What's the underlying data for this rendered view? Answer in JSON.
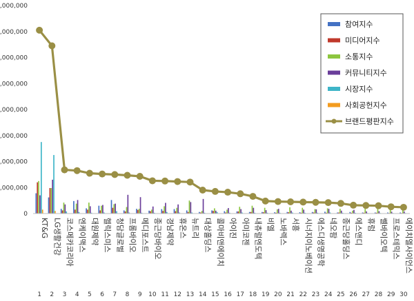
{
  "chart_data": {
    "type": "bar",
    "title": "",
    "xlabel": "",
    "ylabel": "",
    "ylim": [
      0,
      8000000
    ],
    "yticks": [
      "0",
      "1,000,000",
      "2,000,000",
      "3,000,000",
      "4,000,000",
      "5,000,000",
      "6,000,000",
      "7,000,000",
      "8,000,000"
    ],
    "grid": false,
    "legend_position": "top-right",
    "ranks": [
      "1",
      "2",
      "3",
      "4",
      "5",
      "6",
      "7",
      "8",
      "9",
      "10",
      "11",
      "12",
      "13",
      "14",
      "15",
      "16",
      "17",
      "18",
      "19",
      "20",
      "21",
      "22",
      "23",
      "24",
      "25",
      "26",
      "27",
      "28",
      "29",
      "30"
    ],
    "categories": [
      "KT&G",
      "LG생활건강",
      "코스메카코리아",
      "엔케이맥스",
      "대원제약",
      "헬릭스미스",
      "청담글로벌",
      "프롬바이오",
      "메디포스트",
      "종근당바이오",
      "경남제약",
      "휴온스",
      "뉴트리",
      "대상홀딩스",
      "콜마비앤에이치",
      "아이진",
      "아미코젠",
      "내츄럴엔도텍",
      "비엘",
      "노바렉스",
      "서흥",
      "시너지이노베이션",
      "에스디생명공학",
      "네오팜",
      "종근당홀딩스",
      "에스앤디",
      "휴럼",
      "쎌바이오텍",
      "프로스테믹스",
      "에이치엘사이언스"
    ],
    "series": [
      {
        "name": "참여지수",
        "color": "#4472C4",
        "values": [
          780000,
          620000,
          180000,
          480000,
          200000,
          300000,
          520000,
          120000,
          180000,
          110000,
          170000,
          170000,
          120000,
          60000,
          120000,
          90000,
          80000,
          60000,
          60000,
          50000,
          60000,
          50000,
          60000,
          70000,
          40000,
          60000,
          40000,
          40000,
          40000,
          40000
        ]
      },
      {
        "name": "미디어지수",
        "color": "#C0392B",
        "values": [
          1200000,
          980000,
          120000,
          150000,
          150000,
          120000,
          220000,
          80000,
          140000,
          90000,
          100000,
          90000,
          60000,
          40000,
          100000,
          40000,
          80000,
          60000,
          50000,
          30000,
          50000,
          30000,
          40000,
          30000,
          40000,
          30000,
          30000,
          30000,
          20000,
          20000
        ]
      },
      {
        "name": "소통지수",
        "color": "#8DC63F",
        "values": [
          1250000,
          980000,
          420000,
          380000,
          420000,
          300000,
          360000,
          250000,
          180000,
          150000,
          280000,
          220000,
          500000,
          100000,
          200000,
          150000,
          260000,
          300000,
          220000,
          160000,
          240000,
          220000,
          170000,
          200000,
          180000,
          110000,
          180000,
          180000,
          160000,
          130000
        ]
      },
      {
        "name": "커뮤니티지수",
        "color": "#6A3D9A",
        "values": [
          700000,
          1300000,
          350000,
          520000,
          280000,
          330000,
          380000,
          720000,
          630000,
          270000,
          410000,
          350000,
          440000,
          560000,
          110000,
          210000,
          170000,
          220000,
          130000,
          180000,
          110000,
          150000,
          160000,
          180000,
          110000,
          140000,
          80000,
          90000,
          70000,
          80000
        ]
      },
      {
        "name": "시장지수",
        "color": "#3EB5C8",
        "values": [
          2750000,
          2250000,
          80000,
          60000,
          30000,
          40000,
          90000,
          40000,
          30000,
          30000,
          60000,
          40000,
          40000,
          30000,
          60000,
          30000,
          40000,
          30000,
          30000,
          30000,
          40000,
          30000,
          30000,
          40000,
          30000,
          30000,
          20000,
          20000,
          20000,
          20000
        ]
      },
      {
        "name": "사회공헌지수",
        "color": "#F39C1F",
        "values": [
          150000,
          100000,
          10000,
          10000,
          10000,
          10000,
          10000,
          10000,
          10000,
          10000,
          10000,
          10000,
          10000,
          10000,
          10000,
          10000,
          10000,
          10000,
          10000,
          10000,
          10000,
          10000,
          10000,
          10000,
          10000,
          10000,
          10000,
          10000,
          10000,
          10000
        ]
      },
      {
        "name": "브랜드평판지수",
        "color": "#9A8F45",
        "type": "line",
        "values": [
          7050000,
          6450000,
          1680000,
          1650000,
          1550000,
          1520000,
          1500000,
          1470000,
          1430000,
          1260000,
          1250000,
          1230000,
          1210000,
          900000,
          850000,
          820000,
          760000,
          660000,
          480000,
          460000,
          450000,
          440000,
          430000,
          420000,
          390000,
          320000,
          310000,
          300000,
          260000,
          240000
        ]
      }
    ]
  }
}
